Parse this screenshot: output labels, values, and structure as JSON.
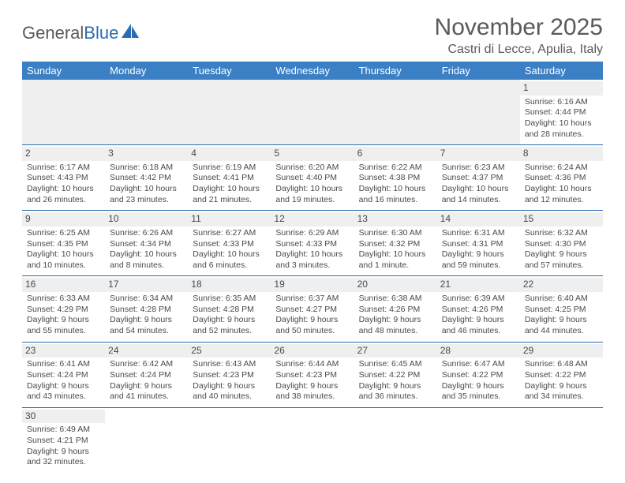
{
  "logo": {
    "text1": "General",
    "text2": "Blue"
  },
  "title": "November 2025",
  "location": "Castri di Lecce, Apulia, Italy",
  "colors": {
    "header_bg": "#3b7fc4",
    "header_text": "#ffffff",
    "border": "#2b6cb0",
    "daybar_bg": "#efefef",
    "text": "#4a4a4a",
    "logo_gray": "#5a5a5a",
    "logo_blue": "#2b6cb0"
  },
  "weekdays": [
    "Sunday",
    "Monday",
    "Tuesday",
    "Wednesday",
    "Thursday",
    "Friday",
    "Saturday"
  ],
  "weeks": [
    [
      null,
      null,
      null,
      null,
      null,
      null,
      {
        "n": "1",
        "sunrise": "Sunrise: 6:16 AM",
        "sunset": "Sunset: 4:44 PM",
        "daylight": "Daylight: 10 hours and 28 minutes."
      }
    ],
    [
      {
        "n": "2",
        "sunrise": "Sunrise: 6:17 AM",
        "sunset": "Sunset: 4:43 PM",
        "daylight": "Daylight: 10 hours and 26 minutes."
      },
      {
        "n": "3",
        "sunrise": "Sunrise: 6:18 AM",
        "sunset": "Sunset: 4:42 PM",
        "daylight": "Daylight: 10 hours and 23 minutes."
      },
      {
        "n": "4",
        "sunrise": "Sunrise: 6:19 AM",
        "sunset": "Sunset: 4:41 PM",
        "daylight": "Daylight: 10 hours and 21 minutes."
      },
      {
        "n": "5",
        "sunrise": "Sunrise: 6:20 AM",
        "sunset": "Sunset: 4:40 PM",
        "daylight": "Daylight: 10 hours and 19 minutes."
      },
      {
        "n": "6",
        "sunrise": "Sunrise: 6:22 AM",
        "sunset": "Sunset: 4:38 PM",
        "daylight": "Daylight: 10 hours and 16 minutes."
      },
      {
        "n": "7",
        "sunrise": "Sunrise: 6:23 AM",
        "sunset": "Sunset: 4:37 PM",
        "daylight": "Daylight: 10 hours and 14 minutes."
      },
      {
        "n": "8",
        "sunrise": "Sunrise: 6:24 AM",
        "sunset": "Sunset: 4:36 PM",
        "daylight": "Daylight: 10 hours and 12 minutes."
      }
    ],
    [
      {
        "n": "9",
        "sunrise": "Sunrise: 6:25 AM",
        "sunset": "Sunset: 4:35 PM",
        "daylight": "Daylight: 10 hours and 10 minutes."
      },
      {
        "n": "10",
        "sunrise": "Sunrise: 6:26 AM",
        "sunset": "Sunset: 4:34 PM",
        "daylight": "Daylight: 10 hours and 8 minutes."
      },
      {
        "n": "11",
        "sunrise": "Sunrise: 6:27 AM",
        "sunset": "Sunset: 4:33 PM",
        "daylight": "Daylight: 10 hours and 6 minutes."
      },
      {
        "n": "12",
        "sunrise": "Sunrise: 6:29 AM",
        "sunset": "Sunset: 4:33 PM",
        "daylight": "Daylight: 10 hours and 3 minutes."
      },
      {
        "n": "13",
        "sunrise": "Sunrise: 6:30 AM",
        "sunset": "Sunset: 4:32 PM",
        "daylight": "Daylight: 10 hours and 1 minute."
      },
      {
        "n": "14",
        "sunrise": "Sunrise: 6:31 AM",
        "sunset": "Sunset: 4:31 PM",
        "daylight": "Daylight: 9 hours and 59 minutes."
      },
      {
        "n": "15",
        "sunrise": "Sunrise: 6:32 AM",
        "sunset": "Sunset: 4:30 PM",
        "daylight": "Daylight: 9 hours and 57 minutes."
      }
    ],
    [
      {
        "n": "16",
        "sunrise": "Sunrise: 6:33 AM",
        "sunset": "Sunset: 4:29 PM",
        "daylight": "Daylight: 9 hours and 55 minutes."
      },
      {
        "n": "17",
        "sunrise": "Sunrise: 6:34 AM",
        "sunset": "Sunset: 4:28 PM",
        "daylight": "Daylight: 9 hours and 54 minutes."
      },
      {
        "n": "18",
        "sunrise": "Sunrise: 6:35 AM",
        "sunset": "Sunset: 4:28 PM",
        "daylight": "Daylight: 9 hours and 52 minutes."
      },
      {
        "n": "19",
        "sunrise": "Sunrise: 6:37 AM",
        "sunset": "Sunset: 4:27 PM",
        "daylight": "Daylight: 9 hours and 50 minutes."
      },
      {
        "n": "20",
        "sunrise": "Sunrise: 6:38 AM",
        "sunset": "Sunset: 4:26 PM",
        "daylight": "Daylight: 9 hours and 48 minutes."
      },
      {
        "n": "21",
        "sunrise": "Sunrise: 6:39 AM",
        "sunset": "Sunset: 4:26 PM",
        "daylight": "Daylight: 9 hours and 46 minutes."
      },
      {
        "n": "22",
        "sunrise": "Sunrise: 6:40 AM",
        "sunset": "Sunset: 4:25 PM",
        "daylight": "Daylight: 9 hours and 44 minutes."
      }
    ],
    [
      {
        "n": "23",
        "sunrise": "Sunrise: 6:41 AM",
        "sunset": "Sunset: 4:24 PM",
        "daylight": "Daylight: 9 hours and 43 minutes."
      },
      {
        "n": "24",
        "sunrise": "Sunrise: 6:42 AM",
        "sunset": "Sunset: 4:24 PM",
        "daylight": "Daylight: 9 hours and 41 minutes."
      },
      {
        "n": "25",
        "sunrise": "Sunrise: 6:43 AM",
        "sunset": "Sunset: 4:23 PM",
        "daylight": "Daylight: 9 hours and 40 minutes."
      },
      {
        "n": "26",
        "sunrise": "Sunrise: 6:44 AM",
        "sunset": "Sunset: 4:23 PM",
        "daylight": "Daylight: 9 hours and 38 minutes."
      },
      {
        "n": "27",
        "sunrise": "Sunrise: 6:45 AM",
        "sunset": "Sunset: 4:22 PM",
        "daylight": "Daylight: 9 hours and 36 minutes."
      },
      {
        "n": "28",
        "sunrise": "Sunrise: 6:47 AM",
        "sunset": "Sunset: 4:22 PM",
        "daylight": "Daylight: 9 hours and 35 minutes."
      },
      {
        "n": "29",
        "sunrise": "Sunrise: 6:48 AM",
        "sunset": "Sunset: 4:22 PM",
        "daylight": "Daylight: 9 hours and 34 minutes."
      }
    ],
    [
      {
        "n": "30",
        "sunrise": "Sunrise: 6:49 AM",
        "sunset": "Sunset: 4:21 PM",
        "daylight": "Daylight: 9 hours and 32 minutes."
      },
      null,
      null,
      null,
      null,
      null,
      null
    ]
  ]
}
